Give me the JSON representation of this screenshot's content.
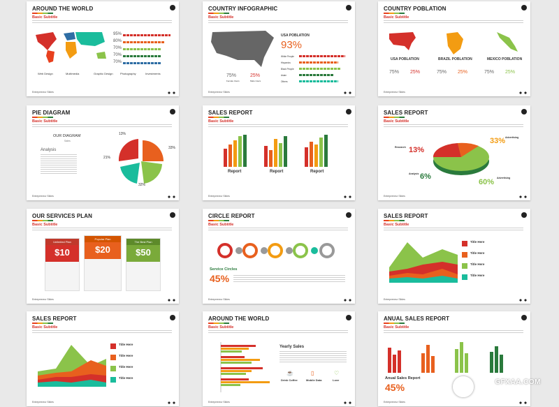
{
  "footer": "Entrepreneur Slides",
  "s1": {
    "title": "AROUND THE WORLD",
    "sub": "Basic Subtitle",
    "pct": [
      "95%",
      "80%",
      "70%",
      "70%",
      "70%"
    ],
    "legend": [
      "Web Design",
      "Multimedia",
      "Graphic Design",
      "Photography",
      "Investments"
    ]
  },
  "s2": {
    "title": "COUNTRY INFOGRAPHIC",
    "sub": "Basic Subtitle",
    "pop": "USA POBLATION",
    "big": "93%",
    "bars": [
      "White People",
      "Hispanics",
      "Black People",
      "Asian",
      "Others"
    ],
    "female": "75%",
    "male": "25%",
    "fl": "Female Users",
    "ml": "Male Users"
  },
  "s3": {
    "title": "COUNTRY POBLATION",
    "sub": "Basic Subtitle",
    "cols": [
      {
        "name": "USA POBLATION",
        "f": "75%",
        "m": "25%"
      },
      {
        "name": "BRAZIL POBLATION",
        "f": "75%",
        "m": "25%"
      },
      {
        "name": "MEXICO POBLATION",
        "f": "75%",
        "m": "25%"
      }
    ]
  },
  "s4": {
    "title": "PIE DIAGRAM",
    "sub": "Basic Subtitle",
    "d": "OUR DIAGRAM",
    "sales": "Sales",
    "an": "Analysis",
    "p": [
      "13%",
      "33%",
      "21%",
      "32%"
    ]
  },
  "s5": {
    "title": "SALES REPORT",
    "sub": "Basic Subtitle",
    "r": "Report"
  },
  "s6": {
    "title": "SALES REPORT",
    "sub": "Basic Subtitle",
    "p1": "33%",
    "p2": "13%",
    "p3": "6%",
    "p4": "60%",
    "l1": "Advertising",
    "l2": "Research",
    "l3": "Analysis",
    "l4": "Advertising"
  },
  "s7": {
    "title": "OUR SERVICES PLAN",
    "sub": "Basic Subtitle",
    "plans": [
      {
        "n": "Unlimited Plan",
        "p": "$10"
      },
      {
        "n": "Popular Plan",
        "p": "$20"
      },
      {
        "n": "The Best Plan",
        "p": "$50"
      }
    ]
  },
  "s8": {
    "title": "CIRCLE REPORT",
    "sub": "Basic Subtitle",
    "sc": "Service Circles",
    "p": "45%"
  },
  "s9": {
    "title": "SALES REPORT",
    "sub": "Basic Subtitle",
    "items": [
      "Title Here",
      "Title Here",
      "Title Here",
      "Title Here"
    ]
  },
  "s10": {
    "title": "SALES REPORT",
    "sub": "Basic Subtitle",
    "items": [
      "Title Here",
      "Title Here",
      "Title Here",
      "Title Here"
    ]
  },
  "s11": {
    "title": "AROUND THE WORLD",
    "sub": "Basic Subtitle",
    "ys": "Yearly Sales",
    "ic": [
      "Drink Coffee",
      "Mobile Data",
      "Love"
    ]
  },
  "s12": {
    "title": "ANUAL SALES REPORT",
    "sub": "Basic Subtitle",
    "asr": "Anual Sales Report",
    "p": "45%"
  },
  "watermark": "GFXAA.COM",
  "colors": {
    "red": "#d4302a",
    "orange": "#f39c12",
    "green": "#8bc34a",
    "dkgreen": "#2a7a3c",
    "teal": "#1abc9c",
    "blue": "#2e6da4"
  }
}
